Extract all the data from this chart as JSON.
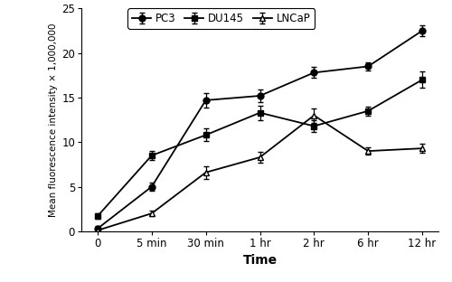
{
  "x_labels": [
    "0",
    "5 min",
    "30 min",
    "1 hr",
    "2 hr",
    "6 hr",
    "12 hr"
  ],
  "x_positions": [
    0,
    1,
    2,
    3,
    4,
    5,
    6
  ],
  "series": [
    {
      "name": "PC3",
      "values": [
        0.3,
        5.0,
        14.7,
        15.2,
        17.8,
        18.5,
        22.5
      ],
      "errors": [
        0.3,
        0.5,
        0.8,
        0.7,
        0.6,
        0.5,
        0.6
      ],
      "marker": "o",
      "marker_size": 5,
      "fillstyle": "full"
    },
    {
      "name": "DU145",
      "values": [
        1.7,
        8.5,
        10.8,
        13.3,
        11.8,
        13.5,
        17.0
      ],
      "errors": [
        0.3,
        0.5,
        0.7,
        0.8,
        0.7,
        0.5,
        0.9
      ],
      "marker": "s",
      "marker_size": 5,
      "fillstyle": "full"
    },
    {
      "name": "LNCaP",
      "values": [
        0.1,
        2.0,
        6.6,
        8.3,
        13.0,
        9.0,
        9.3
      ],
      "errors": [
        0.2,
        0.3,
        0.7,
        0.6,
        0.8,
        0.4,
        0.5
      ],
      "marker": "^",
      "marker_size": 5,
      "fillstyle": "none"
    }
  ],
  "ylabel": "Mean fluorescence intensity × 1,000,000",
  "xlabel": "Time",
  "ylim": [
    0,
    25
  ],
  "yticks": [
    0,
    5,
    10,
    15,
    20,
    25
  ],
  "line_color": "#000000",
  "background_color": "#ffffff"
}
